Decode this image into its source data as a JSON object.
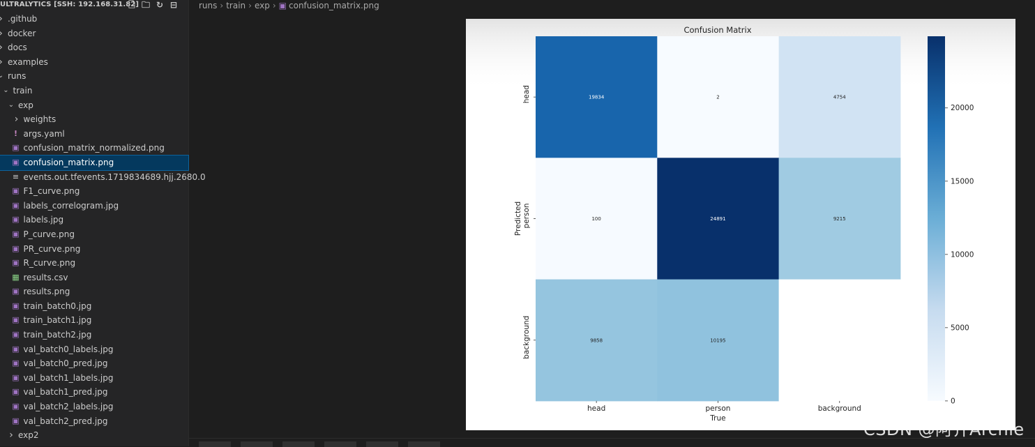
{
  "explorer": {
    "title": "ULTRALYTICS [SSH: 192.168.31.82]",
    "actions": [
      "new-file-icon",
      "new-folder-icon",
      "refresh-icon",
      "collapse-all-icon"
    ],
    "items": [
      {
        "label": ".github",
        "depth": 0,
        "type": "folder",
        "expanded": false
      },
      {
        "label": "docker",
        "depth": 0,
        "type": "folder",
        "expanded": false
      },
      {
        "label": "docs",
        "depth": 0,
        "type": "folder",
        "expanded": false
      },
      {
        "label": "examples",
        "depth": 0,
        "type": "folder",
        "expanded": false
      },
      {
        "label": "runs",
        "depth": 0,
        "type": "folder",
        "expanded": true
      },
      {
        "label": "train",
        "depth": 1,
        "type": "folder",
        "expanded": true
      },
      {
        "label": "exp",
        "depth": 2,
        "type": "folder",
        "expanded": true
      },
      {
        "label": "weights",
        "depth": 3,
        "type": "folder",
        "expanded": false
      },
      {
        "label": "args.yaml",
        "depth": 3,
        "type": "yaml"
      },
      {
        "label": "confusion_matrix_normalized.png",
        "depth": 3,
        "type": "image"
      },
      {
        "label": "confusion_matrix.png",
        "depth": 3,
        "type": "image",
        "selected": true
      },
      {
        "label": "events.out.tfevents.1719834689.hjj.2680.0",
        "depth": 3,
        "type": "text"
      },
      {
        "label": "F1_curve.png",
        "depth": 3,
        "type": "image"
      },
      {
        "label": "labels_correlogram.jpg",
        "depth": 3,
        "type": "image"
      },
      {
        "label": "labels.jpg",
        "depth": 3,
        "type": "image"
      },
      {
        "label": "P_curve.png",
        "depth": 3,
        "type": "image"
      },
      {
        "label": "PR_curve.png",
        "depth": 3,
        "type": "image"
      },
      {
        "label": "R_curve.png",
        "depth": 3,
        "type": "image"
      },
      {
        "label": "results.csv",
        "depth": 3,
        "type": "csv"
      },
      {
        "label": "results.png",
        "depth": 3,
        "type": "image"
      },
      {
        "label": "train_batch0.jpg",
        "depth": 3,
        "type": "image"
      },
      {
        "label": "train_batch1.jpg",
        "depth": 3,
        "type": "image"
      },
      {
        "label": "train_batch2.jpg",
        "depth": 3,
        "type": "image"
      },
      {
        "label": "val_batch0_labels.jpg",
        "depth": 3,
        "type": "image"
      },
      {
        "label": "val_batch0_pred.jpg",
        "depth": 3,
        "type": "image"
      },
      {
        "label": "val_batch1_labels.jpg",
        "depth": 3,
        "type": "image"
      },
      {
        "label": "val_batch1_pred.jpg",
        "depth": 3,
        "type": "image"
      },
      {
        "label": "val_batch2_labels.jpg",
        "depth": 3,
        "type": "image"
      },
      {
        "label": "val_batch2_pred.jpg",
        "depth": 3,
        "type": "image"
      },
      {
        "label": "exp2",
        "depth": 2,
        "type": "folder",
        "expanded": false
      }
    ]
  },
  "breadcrumb": [
    "runs",
    "train",
    "exp",
    "confusion_matrix.png"
  ],
  "chart_data": {
    "type": "heatmap",
    "title": "Confusion Matrix",
    "xlabel": "True",
    "ylabel": "Predicted",
    "x_categories": [
      "head",
      "person",
      "background"
    ],
    "y_categories": [
      "head",
      "person",
      "background"
    ],
    "values": [
      [
        19834,
        2,
        4754
      ],
      [
        100,
        24891,
        9215
      ],
      [
        9858,
        10195,
        null
      ]
    ],
    "colorscale": "Blues",
    "colorbar_range": [
      0,
      24891
    ],
    "colorbar_ticks": [
      0,
      5000,
      10000,
      15000,
      20000
    ]
  },
  "watermark": "CSDN @阿齐Archie",
  "colors": {
    "sidebar_bg": "#252526",
    "editor_bg": "#1e1e1e",
    "selection": "#04395e",
    "image_icon": "#a074c4"
  }
}
